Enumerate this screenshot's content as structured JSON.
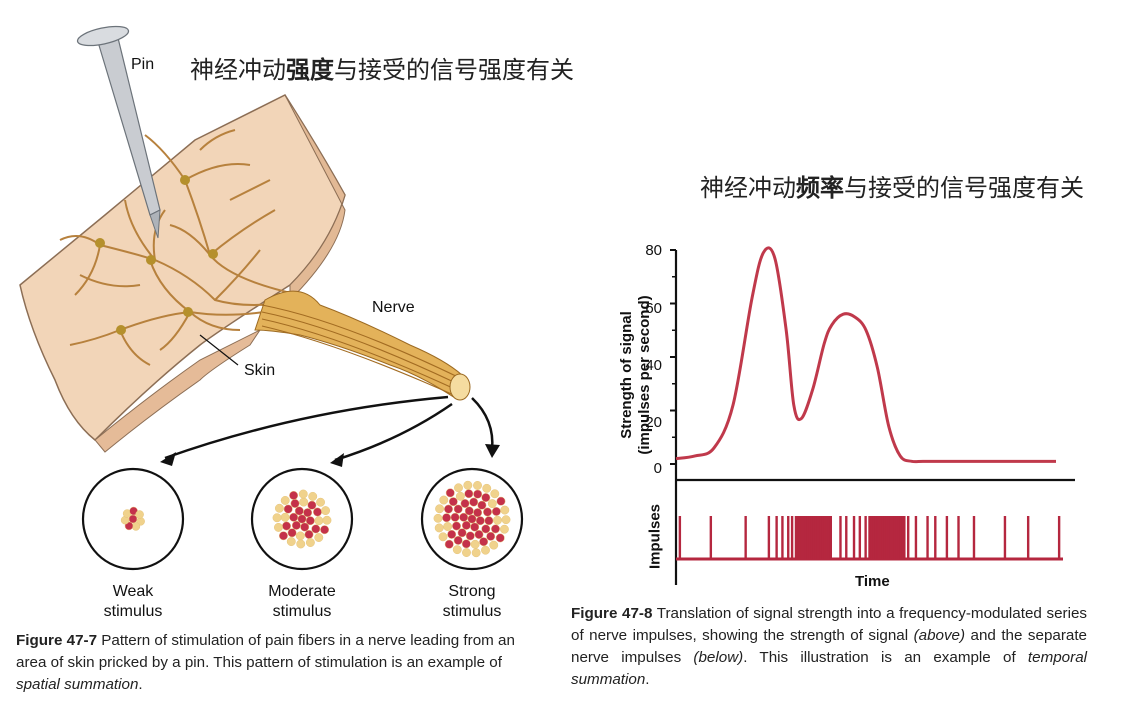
{
  "fig7": {
    "title_a": "神经冲动",
    "title_b": "强度",
    "title_c": "与接受的信号强度有关",
    "pin": "Pin",
    "nerve": "Nerve",
    "skin": "Skin",
    "stimuli": [
      {
        "l1": "Weak",
        "l2": "stimulus"
      },
      {
        "l1": "Moderate",
        "l2": "stimulus"
      },
      {
        "l1": "Strong",
        "l2": "stimulus"
      }
    ],
    "caption": {
      "label": "Figure 47-7",
      "text": " Pattern of stimulation of pain fibers in a nerve leading from an area of skin pricked by a pin. This pattern of stimulation is an example of ",
      "italic": "spatial summation",
      "end": "."
    }
  },
  "fig8": {
    "title_a": "神经冲动",
    "title_b": "频率",
    "title_c": "与接受的信号强度有关",
    "caption": {
      "label": "Figure 47-8",
      "text1": " Translation of signal strength into a frequency-modulated series of nerve impulses, showing the strength of signal ",
      "ital1": "(above)",
      "text2": " and the separate nerve impulses ",
      "ital2": "(below)",
      "text3": ". This illustration is an example of ",
      "ital3": "temporal summation",
      "end": "."
    }
  },
  "chart_data": {
    "type": "line",
    "ylabel_line1": "Strength of signal",
    "ylabel_line2": "(impulses per second)",
    "xlabel": "Time",
    "impulses_label": "Impulses",
    "ylim": [
      0,
      80
    ],
    "yticks": [
      "80",
      "60",
      "40",
      "20",
      "0"
    ],
    "colors": {
      "line": "#c0394b",
      "impulse": "#b5273f"
    },
    "series": [
      {
        "x": [
          0,
          0.05,
          0.1,
          0.15,
          0.2,
          0.23,
          0.26,
          0.29,
          0.31,
          0.33,
          0.36,
          0.39,
          0.41,
          0.44,
          0.47,
          0.5,
          0.53,
          0.56,
          0.59,
          0.62,
          0.65,
          0.7,
          0.8,
          0.9,
          1.0
        ],
        "y": [
          2,
          3,
          6,
          22,
          62,
          79,
          77,
          50,
          22,
          17,
          28,
          45,
          52,
          56,
          55,
          50,
          36,
          14,
          3,
          1,
          1,
          1,
          1,
          1,
          1
        ]
      }
    ],
    "impulse_times": [
      0.01,
      0.09,
      0.18,
      0.24,
      0.26,
      0.275,
      0.29,
      0.3,
      0.31,
      0.315,
      0.32,
      0.325,
      0.33,
      0.335,
      0.34,
      0.345,
      0.35,
      0.355,
      0.36,
      0.365,
      0.37,
      0.375,
      0.38,
      0.385,
      0.39,
      0.395,
      0.4,
      0.425,
      0.44,
      0.46,
      0.475,
      0.49,
      0.5,
      0.505,
      0.51,
      0.515,
      0.52,
      0.525,
      0.53,
      0.535,
      0.54,
      0.545,
      0.55,
      0.555,
      0.56,
      0.565,
      0.57,
      0.575,
      0.58,
      0.585,
      0.59,
      0.6,
      0.62,
      0.65,
      0.67,
      0.7,
      0.73,
      0.77,
      0.85,
      0.91,
      0.99
    ]
  }
}
